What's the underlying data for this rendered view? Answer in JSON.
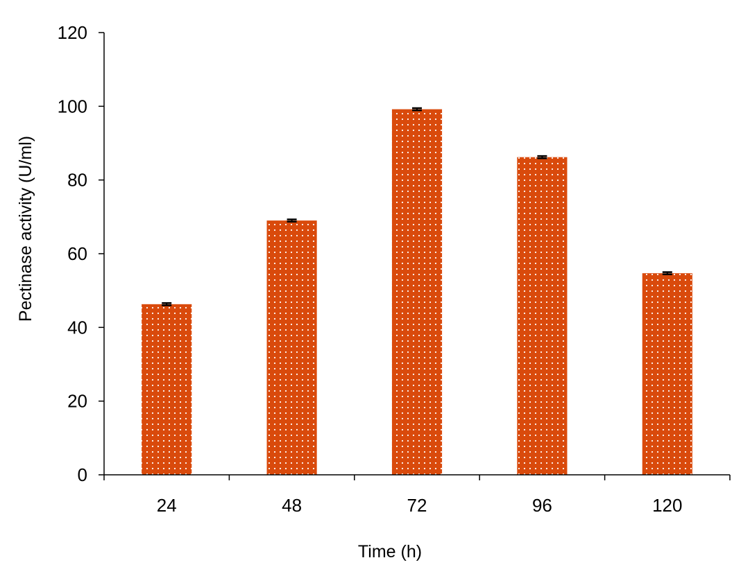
{
  "chart_data": {
    "type": "bar",
    "categories": [
      "24",
      "48",
      "72",
      "96",
      "120"
    ],
    "values": [
      46.3,
      69.0,
      99.2,
      86.2,
      54.7
    ],
    "error": [
      0.3,
      0.3,
      0.3,
      0.3,
      0.3
    ],
    "xlabel": "Time (h)",
    "ylabel": "Pectinase activity (U/ml)",
    "ylim": [
      0,
      120
    ],
    "yticks": [
      0,
      20,
      40,
      60,
      80,
      100,
      120
    ],
    "grid": false,
    "bar_color": "#d94a0c",
    "bar_pattern": "white dots",
    "error_bar_color": "#000000"
  }
}
